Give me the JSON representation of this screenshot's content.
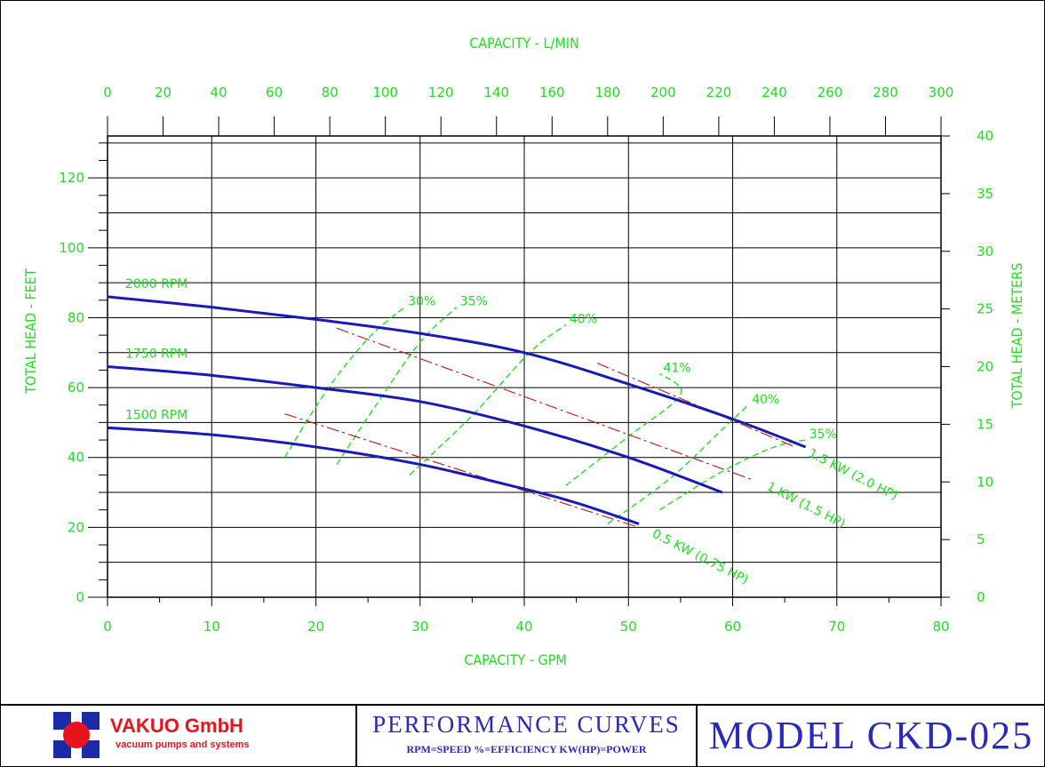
{
  "chart_data": {
    "type": "line",
    "title": "PERFORMANCE CURVES",
    "x_bottom": {
      "label": "CAPACITY - GPM",
      "range": [
        0,
        80
      ],
      "ticks": [
        0,
        10,
        20,
        30,
        40,
        50,
        60,
        70,
        80
      ]
    },
    "x_top": {
      "label": "CAPACITY - L/MIN",
      "range": [
        0,
        300
      ],
      "ticks": [
        0,
        20,
        40,
        60,
        80,
        100,
        120,
        140,
        160,
        180,
        200,
        220,
        240,
        260,
        280,
        300
      ]
    },
    "y_left": {
      "label": "TOTAL HEAD - FEET",
      "range": [
        0,
        130
      ],
      "ticks": [
        0,
        20,
        40,
        60,
        80,
        100,
        120
      ]
    },
    "y_right": {
      "label": "TOTAL HEAD - METERS",
      "range": [
        0,
        40
      ],
      "ticks": [
        0,
        5,
        10,
        15,
        20,
        25,
        30,
        35,
        40
      ]
    },
    "grid": true,
    "series": [
      {
        "name": "2000 RPM",
        "x": [
          0,
          10,
          20,
          30,
          40,
          50,
          60,
          67
        ],
        "y": [
          86,
          83,
          79.5,
          75.5,
          70,
          61,
          51,
          43
        ]
      },
      {
        "name": "1750 RPM",
        "x": [
          0,
          10,
          20,
          30,
          40,
          50,
          59
        ],
        "y": [
          66,
          63.5,
          60,
          56,
          49,
          40,
          30
        ]
      },
      {
        "name": "1500 RPM",
        "x": [
          0,
          10,
          20,
          30,
          40,
          45,
          51
        ],
        "y": [
          48.5,
          46.5,
          43,
          38,
          31,
          27,
          21
        ]
      }
    ],
    "efficiency_curves": [
      {
        "label": "30%",
        "x": [
          17,
          21,
          25,
          28.5
        ],
        "y": [
          40,
          59,
          74,
          83
        ]
      },
      {
        "label": "35%",
        "x": [
          22,
          26,
          30,
          33.5
        ],
        "y": [
          38,
          56,
          73,
          83
        ]
      },
      {
        "label": "40%",
        "x": [
          29,
          35,
          40.5,
          44
        ],
        "y": [
          35,
          52,
          70,
          78
        ]
      },
      {
        "label": "41%",
        "x": [
          44,
          50,
          55,
          53
        ],
        "y": [
          32,
          46,
          58,
          64
        ]
      },
      {
        "label": "40%",
        "x": [
          48,
          54,
          59,
          61.5
        ],
        "y": [
          21,
          34,
          48,
          55
        ]
      },
      {
        "label": "35%",
        "x": [
          53,
          59,
          64,
          67
        ],
        "y": [
          25,
          36,
          43,
          45
        ]
      }
    ],
    "power_lines": [
      {
        "label": "0.5 KW (0.75 HP)",
        "x": [
          17,
          51
        ],
        "y": [
          52.5,
          20
        ]
      },
      {
        "label": "1 KW (1.5 HP)",
        "x": [
          22,
          62
        ],
        "y": [
          77,
          33.5
        ]
      },
      {
        "label": "1.5 KW (2.0 HP)",
        "x": [
          47,
          66
        ],
        "y": [
          67,
          43
        ]
      }
    ]
  },
  "footer": {
    "brand": "VAKUO GmbH",
    "tagline": "vacuum pumps and systems",
    "perf_title": "PERFORMANCE CURVES",
    "perf_subtitle": "RPM=SPEED %=EFFICIENCY KW(HP)=POWER",
    "model": "MODEL CKD-025"
  },
  "colors": {
    "curve": "#1a1ab4",
    "label": "#22dd22",
    "power": "#c0281c",
    "brand": "#e8141c"
  }
}
